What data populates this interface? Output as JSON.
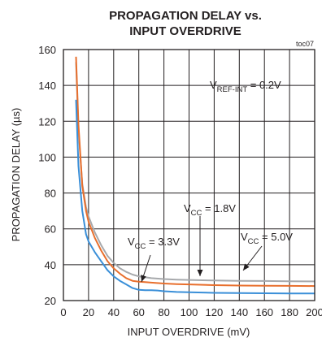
{
  "chart_data": {
    "type": "line",
    "title_line1": "PROPAGATION DELAY vs.",
    "title_line2": "INPUT OVERDRIVE",
    "tag": "toc07",
    "xlabel": "INPUT OVERDRIVE (mV)",
    "ylabel": "PROPAGATION DELAY (µs)",
    "xlim": [
      0,
      200
    ],
    "ylim": [
      20,
      160
    ],
    "xticks": [
      0,
      20,
      40,
      60,
      80,
      100,
      120,
      140,
      160,
      180,
      200
    ],
    "yticks": [
      20,
      40,
      60,
      80,
      100,
      120,
      140,
      160
    ],
    "grid": true,
    "series": [
      {
        "name": "VCC = 5.0V",
        "color": "#a7a9ac",
        "x": [
          10,
          12,
          15,
          18,
          20,
          25,
          30,
          35,
          40,
          45,
          50,
          55,
          60,
          65,
          70,
          80,
          90,
          100,
          120,
          140,
          160,
          180,
          200
        ],
        "y": [
          153,
          115,
          85,
          72,
          67,
          58,
          51,
          45,
          41,
          38,
          36,
          34.5,
          33.5,
          33,
          32.5,
          32,
          31.7,
          31.5,
          31.2,
          31,
          30.9,
          30.8,
          30.7
        ]
      },
      {
        "name": "VCC = 1.8V",
        "color": "#e86f2d",
        "x": [
          10,
          12,
          15,
          18,
          20,
          25,
          30,
          35,
          40,
          45,
          50,
          55,
          60,
          65,
          70,
          80,
          90,
          100,
          120,
          140,
          160,
          180,
          200
        ],
        "y": [
          156,
          118,
          84,
          70,
          64,
          55,
          48,
          42,
          38,
          35,
          32.5,
          31,
          30.5,
          30.3,
          30,
          29.5,
          29.2,
          29,
          28.6,
          28.4,
          28.3,
          28.2,
          28.1
        ]
      },
      {
        "name": "VCC = 3.3V",
        "color": "#3a8fd8",
        "x": [
          10,
          12,
          15,
          18,
          20,
          25,
          30,
          35,
          40,
          45,
          50,
          55,
          60,
          65,
          70,
          75,
          80,
          90,
          100,
          120,
          140,
          160,
          180,
          200
        ],
        "y": [
          132,
          95,
          70,
          57,
          53,
          47,
          42,
          37,
          33.5,
          31,
          29,
          27,
          26,
          25.8,
          25.8,
          25.6,
          25.2,
          24.8,
          24.6,
          24.3,
          24.2,
          24.1,
          24,
          24
        ]
      }
    ],
    "annotations": {
      "vref": {
        "main": "V",
        "sub": "REF-INT",
        "rest": " = 0.2V"
      },
      "vcc33": {
        "main": "V",
        "sub": "CC",
        "rest": " = 3.3V"
      },
      "vcc18": {
        "main": "V",
        "sub": "CC",
        "rest": " = 1.8V"
      },
      "vcc50": {
        "main": "V",
        "sub": "CC",
        "rest": " = 5.0V"
      }
    }
  }
}
